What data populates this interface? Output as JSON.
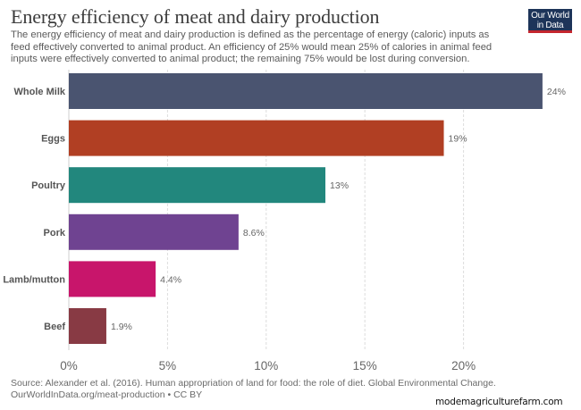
{
  "header": {
    "title": "Energy efficiency of meat and dairy production",
    "subtitle": "The energy efficiency of meat and dairy production is defined as the percentage of energy (caloric) inputs as feed effectively converted to animal product. An efficiency of 25% would mean 25% of calories in animal feed inputs were effectively converted to animal product; the remaining 75% would be lost during conversion.",
    "logo_line1": "Our World",
    "logo_line2": "in Data"
  },
  "footer": {
    "source": "Source: Alexander et al. (2016). Human appropriation of land for food: the role of diet. Global Environmental Change.",
    "license": "OurWorldInData.org/meat-production • CC BY"
  },
  "watermark": "modemagriculturefarm.com",
  "chart_data": {
    "type": "bar",
    "orientation": "horizontal",
    "title": "Energy efficiency of meat and dairy production",
    "xlabel": "",
    "ylabel": "",
    "categories": [
      "Whole Milk",
      "Eggs",
      "Poultry",
      "Pork",
      "Lamb/mutton",
      "Beef"
    ],
    "values": [
      24,
      19,
      13,
      8.6,
      4.4,
      1.9
    ],
    "value_labels": [
      "24%",
      "19%",
      "13%",
      "8.6%",
      "4.4%",
      "1.9%"
    ],
    "colors": [
      "#4a5470",
      "#b13f23",
      "#22877d",
      "#6f4391",
      "#c8156b",
      "#883a44"
    ],
    "xlim": [
      0,
      24
    ],
    "xticks": [
      0,
      5,
      10,
      15,
      20
    ],
    "xtick_labels": [
      "0%",
      "5%",
      "10%",
      "15%",
      "20%"
    ],
    "grid": "vertical-dashed",
    "legend": "none"
  }
}
